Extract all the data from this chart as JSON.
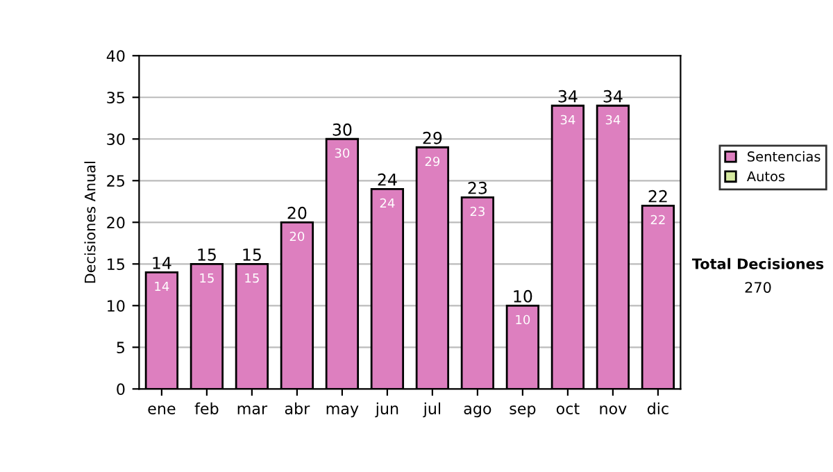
{
  "chart_data": {
    "type": "bar",
    "ylabel": "Decisiones Anual",
    "categories": [
      "ene",
      "feb",
      "mar",
      "abr",
      "may",
      "jun",
      "jul",
      "ago",
      "sep",
      "oct",
      "nov",
      "dic"
    ],
    "series": [
      {
        "name": "Sentencias",
        "color": "#dd7fbf",
        "values": [
          14,
          15,
          15,
          20,
          30,
          24,
          29,
          23,
          10,
          34,
          34,
          22
        ],
        "value_labels": [
          "14",
          "15",
          "15",
          "20",
          "30",
          "24",
          "29",
          "23",
          "10",
          "34",
          "34",
          "22"
        ]
      },
      {
        "name": "Autos",
        "color": "#d6eaa0",
        "values": [
          null,
          null,
          null,
          null,
          null,
          null,
          null,
          null,
          null,
          null,
          null,
          null
        ]
      }
    ],
    "stacked": true,
    "totals": [
      "14",
      "15",
      "15",
      "20",
      "30",
      "24",
      "29",
      "23",
      "10",
      "34",
      "34",
      "22"
    ],
    "ylim": [
      0,
      40
    ],
    "yticks": [
      0,
      5,
      10,
      15,
      20,
      25,
      30,
      35,
      40
    ],
    "grid": "y",
    "legend": "right",
    "annotations": [
      "Total Decisiones",
      "270"
    ]
  }
}
